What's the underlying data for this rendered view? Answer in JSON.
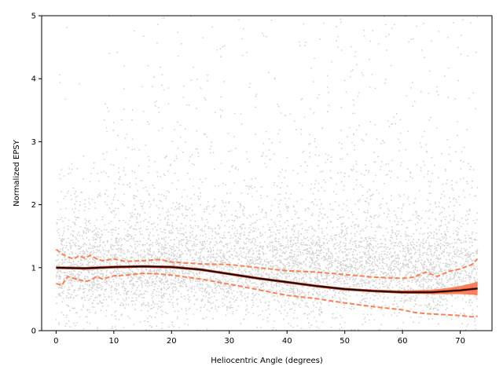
{
  "chart_data": {
    "type": "scatter",
    "title": "",
    "xlabel": "Heliocentric Angle (degrees)",
    "ylabel": "Normalized EPSY",
    "xlim": [
      -2.5,
      75.5
    ],
    "ylim": [
      0,
      5
    ],
    "xticks": [
      0,
      10,
      20,
      30,
      40,
      50,
      60,
      70
    ],
    "yticks": [
      0,
      1,
      2,
      3,
      4,
      5
    ],
    "grid": false,
    "legend": "none",
    "colors": {
      "scatter": "#d3d3d3",
      "fit_line": "#000000",
      "fit_band": "#ff6a3d",
      "dashed_bounds": "#ff7f50"
    },
    "series": [
      {
        "kind": "scatter-cloud",
        "x_range": [
          0,
          73
        ],
        "y_range": [
          0,
          5
        ],
        "note_density": "dense grey points, concentrated between 0 and 1.5"
      },
      {
        "kind": "fit-line",
        "x": [
          0,
          5,
          10,
          15,
          20,
          25,
          30,
          35,
          40,
          45,
          50,
          55,
          60,
          65,
          70,
          73
        ],
        "y": [
          1.0,
          0.99,
          1.01,
          1.02,
          1.01,
          0.97,
          0.9,
          0.83,
          0.77,
          0.71,
          0.66,
          0.63,
          0.61,
          0.61,
          0.64,
          0.67
        ]
      },
      {
        "kind": "confidence-band",
        "x": [
          0,
          5,
          10,
          15,
          20,
          25,
          30,
          35,
          40,
          45,
          50,
          55,
          60,
          65,
          68,
          70,
          72,
          73
        ],
        "lower": [
          0.98,
          0.97,
          0.99,
          1.0,
          0.99,
          0.95,
          0.88,
          0.81,
          0.75,
          0.69,
          0.64,
          0.61,
          0.59,
          0.58,
          0.58,
          0.58,
          0.57,
          0.56
        ],
        "upper": [
          1.02,
          1.01,
          1.03,
          1.04,
          1.03,
          0.99,
          0.92,
          0.85,
          0.79,
          0.73,
          0.68,
          0.65,
          0.64,
          0.65,
          0.68,
          0.71,
          0.75,
          0.78
        ]
      },
      {
        "kind": "upper-bound-dashed",
        "x": [
          0,
          1,
          2,
          3,
          4,
          5,
          6,
          7,
          8,
          10,
          12,
          15,
          18,
          20,
          25,
          30,
          35,
          40,
          45,
          50,
          55,
          60,
          62,
          64,
          66,
          68,
          70,
          72,
          73
        ],
        "y": [
          1.29,
          1.22,
          1.17,
          1.14,
          1.19,
          1.15,
          1.2,
          1.14,
          1.11,
          1.14,
          1.1,
          1.11,
          1.13,
          1.09,
          1.06,
          1.05,
          1.0,
          0.95,
          0.93,
          0.89,
          0.85,
          0.83,
          0.85,
          0.93,
          0.86,
          0.94,
          0.98,
          1.05,
          1.14
        ]
      },
      {
        "kind": "lower-bound-dashed",
        "x": [
          0,
          1,
          2,
          3,
          4,
          5,
          6,
          7,
          8,
          10,
          12,
          15,
          18,
          20,
          25,
          30,
          35,
          40,
          45,
          50,
          55,
          60,
          62,
          64,
          66,
          68,
          70,
          72,
          73
        ],
        "y": [
          0.75,
          0.72,
          0.86,
          0.83,
          0.81,
          0.78,
          0.8,
          0.86,
          0.82,
          0.87,
          0.88,
          0.91,
          0.9,
          0.88,
          0.82,
          0.74,
          0.65,
          0.56,
          0.51,
          0.44,
          0.38,
          0.33,
          0.29,
          0.27,
          0.26,
          0.25,
          0.24,
          0.22,
          0.23
        ]
      }
    ]
  }
}
